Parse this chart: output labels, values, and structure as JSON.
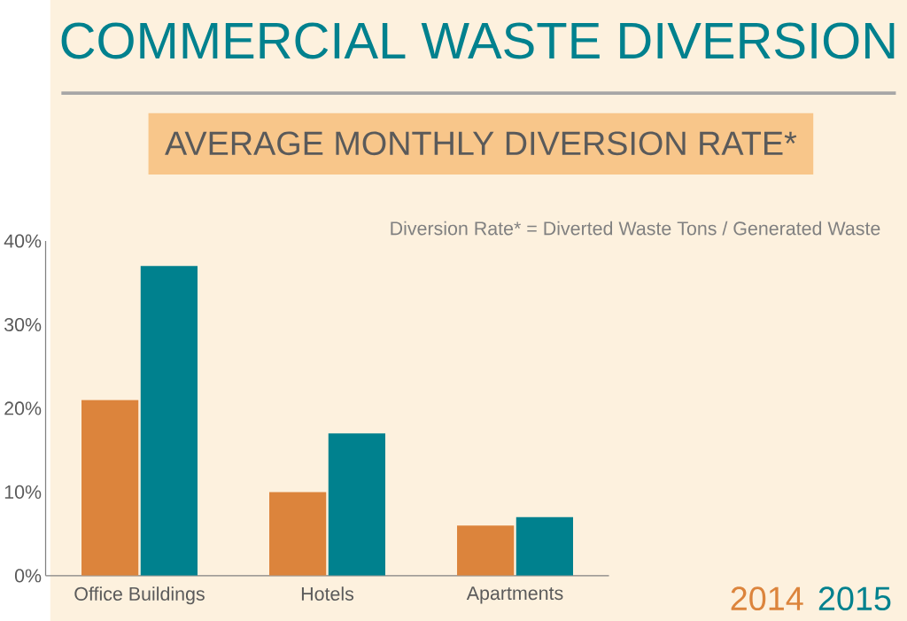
{
  "chart_data": {
    "type": "bar",
    "title": "COMMERCIAL WASTE DIVERSION",
    "subtitle": "AVERAGE MONTHLY DIVERSION RATE*",
    "annotations": [
      "Diversion Rate* = Diverted Waste Tons / Generated Waste"
    ],
    "categories": [
      "Office Buildings",
      "Hotels",
      "Apartments"
    ],
    "series": [
      {
        "name": "2014",
        "color": "#dc843c",
        "values": [
          21,
          10,
          6
        ]
      },
      {
        "name": "2015",
        "color": "#00818e",
        "values": [
          37,
          17,
          7
        ]
      }
    ],
    "ylim": [
      0,
      40
    ],
    "yticks": [
      {
        "value": 0,
        "label": "0%"
      },
      {
        "value": 10,
        "label": "10%"
      },
      {
        "value": 20,
        "label": "20%"
      },
      {
        "value": 30,
        "label": "30%"
      },
      {
        "value": 40,
        "label": "40%"
      }
    ],
    "grid": false,
    "legend": "bottom right"
  }
}
